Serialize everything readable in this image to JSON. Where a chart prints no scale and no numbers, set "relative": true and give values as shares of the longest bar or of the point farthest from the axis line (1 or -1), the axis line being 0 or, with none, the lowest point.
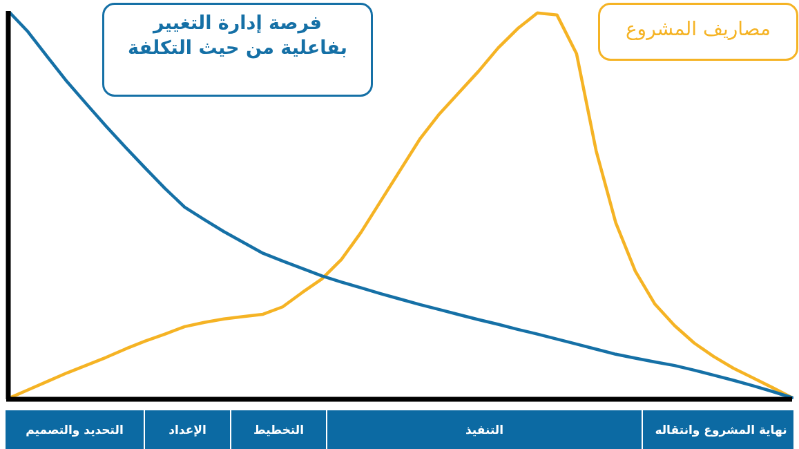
{
  "chart_data": {
    "type": "line",
    "relative": true,
    "line_style": "solid",
    "marker": "none",
    "legend": false,
    "categories": [
      null,
      null,
      null,
      null,
      null,
      null,
      null,
      null,
      null,
      null,
      null,
      null,
      null,
      null,
      null,
      null,
      null,
      null,
      null,
      null,
      null,
      null,
      null,
      null,
      null,
      null,
      null,
      null,
      null,
      null,
      null,
      null,
      null,
      null,
      null,
      null,
      null,
      null,
      null,
      null,
      null
    ],
    "series": [
      {
        "name": "فرصة إدارة التغيير بفاعلية من حيث التكلفة",
        "color": "#1570a6",
        "values": [
          1.0,
          0.947,
          0.882,
          0.818,
          0.76,
          0.703,
          0.648,
          0.595,
          0.543,
          0.495,
          0.463,
          0.432,
          0.404,
          0.376,
          0.356,
          0.337,
          0.318,
          0.302,
          0.287,
          0.272,
          0.258,
          0.244,
          0.231,
          0.218,
          0.205,
          0.193,
          0.18,
          0.168,
          0.155,
          0.142,
          0.129,
          0.116,
          0.106,
          0.096,
          0.087,
          0.075,
          0.062,
          0.049,
          0.035,
          0.02,
          0.004
        ]
      },
      {
        "name": "مصاريف المشروع",
        "color": "#f5b324",
        "values": [
          0.002,
          0.024,
          0.046,
          0.068,
          0.088,
          0.108,
          0.13,
          0.15,
          0.168,
          0.187,
          0.198,
          0.207,
          0.213,
          0.219,
          0.238,
          0.275,
          0.31,
          0.36,
          0.43,
          0.51,
          0.59,
          0.67,
          0.735,
          0.79,
          0.845,
          0.905,
          0.955,
          0.995,
          0.99,
          0.89,
          0.64,
          0.455,
          0.33,
          0.245,
          0.19,
          0.145,
          0.11,
          0.08,
          0.055,
          0.03,
          0.004
        ]
      }
    ],
    "annotations": [
      "التحديد والتصميم",
      "الإعداد",
      "التخطيط",
      "التنفيذ",
      "نهاية المشروع وانتقاله"
    ]
  }
}
